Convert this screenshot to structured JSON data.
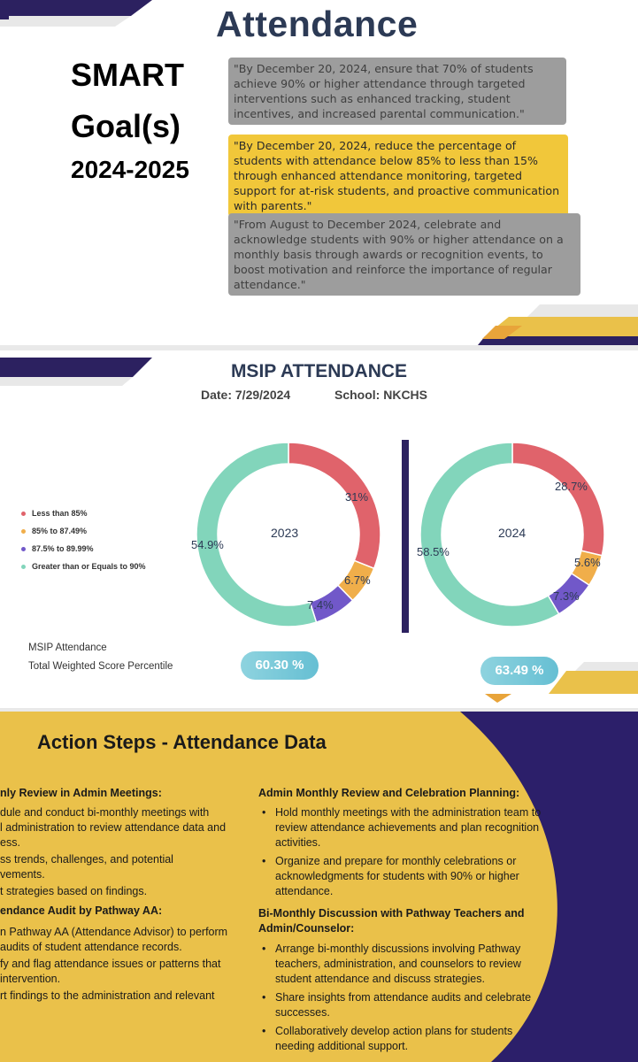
{
  "slide1": {
    "title": "Attendance",
    "smart_line1": "SMART",
    "smart_line2": "Goal(s)",
    "smart_line3": "2024-2025",
    "goals": [
      "\"By December 20, 2024, ensure that 70% of students achieve 90% or higher attendance through targeted interventions such as enhanced tracking, student incentives, and increased parental communication.\"",
      "\"By December 20, 2024, reduce the percentage of students with attendance below 85% to less than 15% through enhanced attendance monitoring, targeted support for at-risk students, and proactive communication with parents.\"",
      "\"From August to December 2024, celebrate and acknowledge students with 90% or higher attendance on a monthly basis through awards or recognition events, to boost motivation and reinforce the importance of regular attendance.\""
    ]
  },
  "slide2": {
    "title": "MSIP ATTENDANCE",
    "date": "Date: 7/29/2024",
    "school": "School: NKCHS",
    "msip_label1": "MSIP Attendance",
    "msip_label2": "Total Weighted Score Percentile",
    "score_2023": "60.30 %",
    "score_2024": "63.49 %"
  },
  "colors": {
    "less_than_85": "#e0636b",
    "p85_87": "#f0ae4a",
    "p87_89": "#7158c9",
    "gte_90": "#82d5bb",
    "navy": "#2c2160",
    "gold": "#eac14a"
  },
  "chart_data": [
    {
      "type": "pie",
      "title": "2023",
      "legend": [
        "Less than 85%",
        "85% to 87.49%",
        "87.5% to 89.99%",
        "Greater than or Equals to 90%"
      ],
      "labels": [
        "31%",
        "6.7%",
        "7.4%",
        "54.9%"
      ],
      "values": [
        31,
        6.7,
        7.4,
        54.9
      ],
      "legend_position": "left"
    },
    {
      "type": "pie",
      "title": "2024",
      "legend": [
        "Less than 85%",
        "85% to 87.49%",
        "87.5% to 89.99%",
        "Greater than or Equals to 90%"
      ],
      "labels": [
        "28.7%",
        "5.6%",
        "7.3%",
        "58.5%"
      ],
      "values": [
        28.7,
        5.6,
        7.3,
        58.5
      ],
      "legend_position": "left"
    }
  ],
  "slide3": {
    "title": "Action Steps - Attendance Data",
    "left_col": [
      "nly Review in Admin Meetings:",
      "dule and conduct bi-monthly meetings with",
      "l administration to review attendance data and",
      "ess.",
      "ss trends, challenges, and potential",
      "vements.",
      "t strategies based on findings.",
      "endance Audit by Pathway AA:",
      "n Pathway AA (Attendance Advisor) to perform",
      "audits of student attendance records.",
      "fy and flag attendance issues or patterns that",
      "intervention.",
      "rt findings to the administration and relevant"
    ],
    "right_head1": "Admin Monthly Review and Celebration Planning:",
    "right_bullets1": [
      "Hold monthly meetings with the administration team to review attendance achievements and plan recognition activities.",
      "Organize and prepare for monthly celebrations or acknowledgments for students with 90% or higher attendance."
    ],
    "right_head2": "Bi-Monthly Discussion with Pathway Teachers and Admin/Counselor:",
    "right_bullets2": [
      "Arrange bi-monthly discussions involving Pathway teachers, administration, and counselors to review student attendance and discuss strategies.",
      "Share insights from attendance audits and celebrate successes.",
      "Collaboratively develop action plans for students needing additional support."
    ]
  }
}
